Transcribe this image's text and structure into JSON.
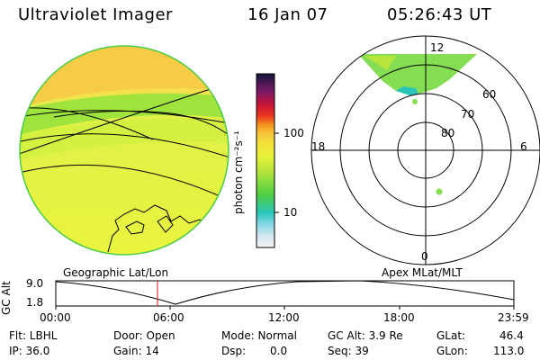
{
  "header": {
    "title": "Ultraviolet Imager",
    "date": "16 Jan 07",
    "time": "05:26:43 UT"
  },
  "colorbar": {
    "unit_label": "photon cm⁻²s⁻¹",
    "ticks": [
      "100",
      "10"
    ]
  },
  "geo_panel": {
    "label": "Geographic Lat/Lon"
  },
  "polar_panel": {
    "label": "Apex MLat/MLT",
    "hour_labels": [
      "12",
      "18",
      "6",
      "0"
    ],
    "lat_labels": [
      "60",
      "70",
      "80"
    ]
  },
  "altitude_plot": {
    "ylabel": "GC Alt",
    "ymax": "9.0",
    "ymin": "1.8",
    "xticks": [
      "00:00",
      "06:00",
      "12:00",
      "18:00",
      "23:59"
    ]
  },
  "footer": {
    "flt": "Flt: LBHL",
    "ip": "IP: 36.0",
    "door": "Door: Open",
    "gain": "Gain: 14",
    "mode": "Mode: Normal",
    "dsp": "Dsp:",
    "dsp_value": "0.0",
    "gc_alt": "GC Alt: 3.9 Re",
    "seq": "Seq: 39",
    "glat": "GLat:",
    "glat_value": "46.4",
    "glon": "GLon:",
    "glon_value": "113.0"
  }
}
